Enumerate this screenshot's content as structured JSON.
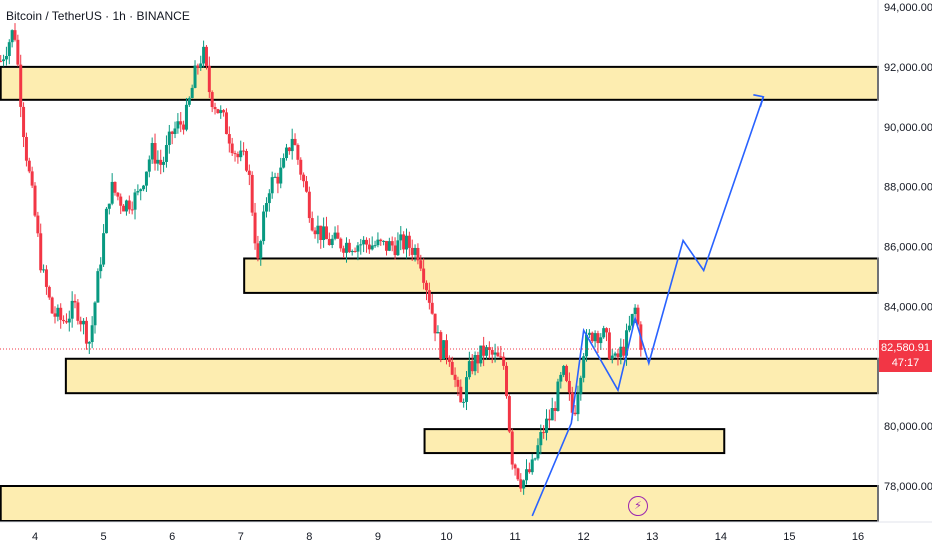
{
  "chart_data": {
    "type": "candlestick",
    "title": "Bitcoin / TetherUS · 1h · BINANCE",
    "x_ticks": [
      "4",
      "5",
      "6",
      "7",
      "8",
      "9",
      "10",
      "11",
      "12",
      "13",
      "14",
      "15",
      "16"
    ],
    "y_ticks": [
      "94,000.00",
      "92,000.00",
      "90,000.00",
      "88,000.00",
      "86,000.00",
      "84,000.00",
      "80,000.00",
      "78,000.00"
    ],
    "ylim": [
      76800,
      94000
    ],
    "xlim": [
      3.5,
      16.4
    ],
    "current_price": "82,580.91",
    "countdown": "47:17",
    "colors": {
      "up": "#089981",
      "down": "#f23645",
      "zone": "#fdedb0",
      "projection": "#2962ff"
    },
    "zones": [
      {
        "x_start": 3.5,
        "x_end": 16.4,
        "y_low": 90900,
        "y_high": 92000
      },
      {
        "x_start": 7.05,
        "x_end": 16.4,
        "y_low": 84450,
        "y_high": 85600
      },
      {
        "x_start": 4.45,
        "x_end": 16.4,
        "y_low": 81100,
        "y_high": 82250
      },
      {
        "x_start": 9.68,
        "x_end": 14.05,
        "y_low": 79100,
        "y_high": 79900
      },
      {
        "x_start": 3.5,
        "x_end": 16.4,
        "y_low": 76800,
        "y_high": 78000
      }
    ],
    "projection_path": [
      {
        "x": 11.25,
        "y": 77000
      },
      {
        "x": 11.82,
        "y": 80100
      },
      {
        "x": 12.0,
        "y": 83200
      },
      {
        "x": 12.5,
        "y": 81200
      },
      {
        "x": 12.75,
        "y": 83600
      },
      {
        "x": 12.95,
        "y": 82100
      },
      {
        "x": 13.45,
        "y": 86200
      },
      {
        "x": 13.75,
        "y": 85200
      },
      {
        "x": 14.62,
        "y": 91000
      }
    ],
    "price_path": [
      {
        "x": 3.5,
        "y": 92200
      },
      {
        "x": 3.7,
        "y": 93300
      },
      {
        "x": 3.85,
        "y": 89500
      },
      {
        "x": 4.0,
        "y": 87000
      },
      {
        "x": 4.1,
        "y": 85200
      },
      {
        "x": 4.25,
        "y": 83800
      },
      {
        "x": 4.4,
        "y": 83500
      },
      {
        "x": 4.6,
        "y": 84000
      },
      {
        "x": 4.8,
        "y": 82800
      },
      {
        "x": 4.95,
        "y": 85500
      },
      {
        "x": 5.1,
        "y": 88000
      },
      {
        "x": 5.3,
        "y": 87400
      },
      {
        "x": 5.5,
        "y": 87700
      },
      {
        "x": 5.7,
        "y": 89200
      },
      {
        "x": 5.85,
        "y": 88700
      },
      {
        "x": 6.0,
        "y": 89800
      },
      {
        "x": 6.2,
        "y": 90300
      },
      {
        "x": 6.35,
        "y": 91900
      },
      {
        "x": 6.45,
        "y": 92500
      },
      {
        "x": 6.55,
        "y": 91100
      },
      {
        "x": 6.75,
        "y": 90200
      },
      {
        "x": 6.95,
        "y": 89000
      },
      {
        "x": 7.1,
        "y": 88800
      },
      {
        "x": 7.25,
        "y": 85400
      },
      {
        "x": 7.4,
        "y": 88000
      },
      {
        "x": 7.6,
        "y": 88500
      },
      {
        "x": 7.75,
        "y": 89700
      },
      {
        "x": 7.9,
        "y": 88300
      },
      {
        "x": 8.05,
        "y": 86800
      },
      {
        "x": 8.25,
        "y": 86200
      },
      {
        "x": 8.5,
        "y": 86100
      },
      {
        "x": 8.8,
        "y": 86100
      },
      {
        "x": 9.1,
        "y": 86000
      },
      {
        "x": 9.4,
        "y": 86100
      },
      {
        "x": 9.6,
        "y": 85800
      },
      {
        "x": 9.75,
        "y": 84300
      },
      {
        "x": 9.9,
        "y": 82600
      },
      {
        "x": 10.05,
        "y": 82400
      },
      {
        "x": 10.2,
        "y": 80600
      },
      {
        "x": 10.35,
        "y": 82000
      },
      {
        "x": 10.55,
        "y": 82500
      },
      {
        "x": 10.7,
        "y": 82300
      },
      {
        "x": 10.85,
        "y": 82000
      },
      {
        "x": 10.95,
        "y": 79000
      },
      {
        "x": 11.1,
        "y": 78100
      },
      {
        "x": 11.25,
        "y": 78600
      },
      {
        "x": 11.4,
        "y": 79800
      },
      {
        "x": 11.55,
        "y": 80500
      },
      {
        "x": 11.7,
        "y": 81800
      },
      {
        "x": 11.85,
        "y": 80300
      },
      {
        "x": 12.0,
        "y": 82600
      },
      {
        "x": 12.15,
        "y": 83200
      },
      {
        "x": 12.3,
        "y": 83000
      },
      {
        "x": 12.45,
        "y": 82100
      },
      {
        "x": 12.6,
        "y": 82700
      },
      {
        "x": 12.75,
        "y": 83900
      },
      {
        "x": 12.85,
        "y": 82580
      }
    ]
  }
}
